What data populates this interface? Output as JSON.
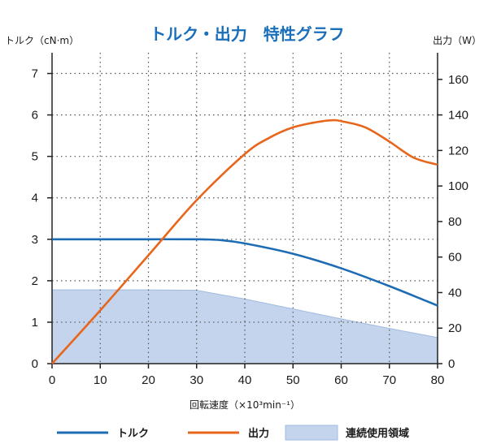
{
  "colors": {
    "torque": "#1e6db4",
    "output": "#e8661c",
    "area_fill": "#c4d4ec",
    "area_stroke": "#9fbbe0",
    "title": "#1a6fba",
    "grid": "#555555"
  },
  "chart_data": {
    "type": "line",
    "title": "トルク・出力　特性グラフ",
    "xlabel": "回転速度（×10³min⁻¹）",
    "ylabel_left": "トルク（cN·m）",
    "ylabel_right": "出力（W）",
    "xlim": [
      0,
      80
    ],
    "ylim_left": [
      0,
      7.5
    ],
    "ylim_right": [
      0,
      175
    ],
    "x_ticks": [
      0,
      10,
      20,
      30,
      40,
      50,
      60,
      70,
      80
    ],
    "y_left_ticks": [
      0,
      1,
      2,
      3,
      4,
      5,
      6,
      7
    ],
    "y_right_ticks": [
      0,
      20,
      40,
      60,
      80,
      100,
      120,
      140,
      160
    ],
    "grid": true,
    "legend_position": "bottom",
    "series": [
      {
        "name": "トルク",
        "axis": "left",
        "style": "line",
        "x": [
          0,
          10,
          20,
          30,
          35,
          40,
          50,
          60,
          70,
          80
        ],
        "values": [
          3.0,
          3.0,
          3.0,
          3.0,
          2.98,
          2.9,
          2.65,
          2.3,
          1.87,
          1.4
        ]
      },
      {
        "name": "出力",
        "axis": "right",
        "style": "line",
        "x": [
          0,
          10,
          20,
          30,
          40,
          45,
          50,
          55,
          58,
          60,
          65,
          70,
          75,
          80
        ],
        "values": [
          0,
          30,
          61,
          92,
          118,
          127,
          133,
          136,
          137,
          136.5,
          133,
          125,
          116,
          112
        ]
      },
      {
        "name": "連続使用領域",
        "axis": "left",
        "style": "area",
        "x": [
          0,
          10,
          20,
          30,
          40,
          50,
          60,
          70,
          80
        ],
        "values": [
          1.78,
          1.78,
          1.78,
          1.77,
          1.56,
          1.32,
          1.08,
          0.85,
          0.63
        ]
      }
    ]
  }
}
